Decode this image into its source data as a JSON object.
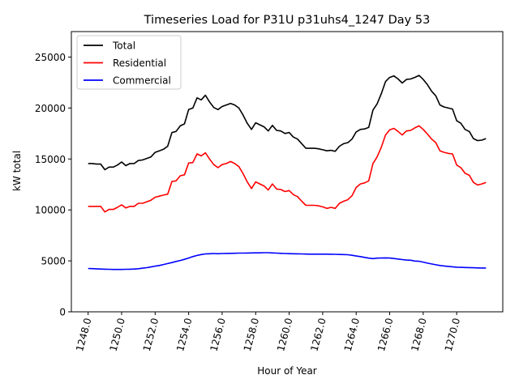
{
  "chart_data": {
    "type": "line",
    "title": "Timeseries Load for P31U p31uhs4_1247  Day 53",
    "xlabel": "Hour of Year",
    "ylabel": "kW total",
    "xlim": [
      1247.0,
      1272.75
    ],
    "ylim": [
      0,
      27500
    ],
    "x_ticks": [
      1248,
      1250,
      1252,
      1254,
      1256,
      1258,
      1260,
      1262,
      1264,
      1266,
      1268,
      1270
    ],
    "x_tick_labels": [
      "1248.0",
      "1250.0",
      "1252.0",
      "1254.0",
      "1256.0",
      "1258.0",
      "1260.0",
      "1262.0",
      "1264.0",
      "1266.0",
      "1268.0",
      "1270.0"
    ],
    "y_ticks": [
      0,
      5000,
      10000,
      15000,
      20000,
      25000
    ],
    "y_tick_labels": [
      "0",
      "5000",
      "10000",
      "15000",
      "20000",
      "25000"
    ],
    "legend_position": "top-left",
    "grid": false,
    "x": [
      1248.0,
      1248.25,
      1248.5,
      1248.75,
      1249.0,
      1249.25,
      1249.5,
      1249.75,
      1250.0,
      1250.25,
      1250.5,
      1250.75,
      1251.0,
      1251.25,
      1251.5,
      1251.75,
      1252.0,
      1252.25,
      1252.5,
      1252.75,
      1253.0,
      1253.25,
      1253.5,
      1253.75,
      1254.0,
      1254.25,
      1254.5,
      1254.75,
      1255.0,
      1255.25,
      1255.5,
      1255.75,
      1256.0,
      1256.25,
      1256.5,
      1256.75,
      1257.0,
      1257.25,
      1257.5,
      1257.75,
      1258.0,
      1258.25,
      1258.5,
      1258.75,
      1259.0,
      1259.25,
      1259.5,
      1259.75,
      1260.0,
      1260.25,
      1260.5,
      1260.75,
      1261.0,
      1261.25,
      1261.5,
      1261.75,
      1262.0,
      1262.25,
      1262.5,
      1262.75,
      1263.0,
      1263.25,
      1263.5,
      1263.75,
      1264.0,
      1264.25,
      1264.5,
      1264.75,
      1265.0,
      1265.25,
      1265.5,
      1265.75,
      1266.0,
      1266.25,
      1266.5,
      1266.75,
      1267.0,
      1267.25,
      1267.5,
      1267.75,
      1268.0,
      1268.25,
      1268.5,
      1268.75,
      1269.0,
      1269.25,
      1269.5,
      1269.75,
      1270.0,
      1270.25,
      1270.5,
      1270.75,
      1271.0,
      1271.25,
      1271.5,
      1271.75
    ],
    "series": [
      {
        "name": "Total",
        "color": "#000000",
        "values": [
          14550,
          14550,
          14500,
          14500,
          13950,
          14200,
          14200,
          14400,
          14700,
          14350,
          14550,
          14550,
          14850,
          14900,
          15050,
          15200,
          15650,
          15800,
          15950,
          16250,
          17600,
          17700,
          18250,
          18450,
          19850,
          20000,
          21000,
          20800,
          21250,
          20600,
          20050,
          19850,
          20150,
          20300,
          20450,
          20300,
          20000,
          19300,
          18500,
          17900,
          18550,
          18350,
          18150,
          17750,
          18300,
          17800,
          17750,
          17500,
          17600,
          17150,
          16950,
          16500,
          16050,
          16050,
          16050,
          16000,
          15900,
          15800,
          15850,
          15750,
          16250,
          16500,
          16600,
          16950,
          17650,
          17900,
          17950,
          18100,
          19800,
          20400,
          21400,
          22600,
          23000,
          23150,
          22850,
          22450,
          22800,
          22850,
          23000,
          23200,
          22800,
          22300,
          21650,
          21200,
          20300,
          20100,
          20000,
          19900,
          18750,
          18500,
          17900,
          17700,
          17000,
          16800,
          16850,
          17000
        ]
      },
      {
        "name": "Residential",
        "color": "#ff0000",
        "values": [
          10350,
          10350,
          10350,
          10350,
          9800,
          10050,
          10050,
          10250,
          10500,
          10200,
          10350,
          10350,
          10650,
          10650,
          10800,
          10950,
          11250,
          11350,
          11450,
          11550,
          12800,
          12850,
          13350,
          13450,
          14600,
          14650,
          15500,
          15300,
          15600,
          15000,
          14450,
          14150,
          14450,
          14550,
          14750,
          14550,
          14250,
          13550,
          12750,
          12100,
          12750,
          12550,
          12350,
          11950,
          12550,
          12050,
          12000,
          11800,
          11900,
          11500,
          11300,
          10850,
          10450,
          10450,
          10450,
          10400,
          10300,
          10150,
          10250,
          10150,
          10650,
          10850,
          11000,
          11400,
          12200,
          12550,
          12650,
          12850,
          14550,
          15200,
          16150,
          17350,
          17850,
          18000,
          17700,
          17350,
          17750,
          17800,
          18050,
          18250,
          17900,
          17450,
          16950,
          16600,
          15800,
          15650,
          15550,
          15500,
          14400,
          14150,
          13600,
          13400,
          12700,
          12450,
          12550,
          12700
        ]
      },
      {
        "name": "Commercial",
        "color": "#0000ff",
        "values": [
          4250,
          4240,
          4220,
          4200,
          4180,
          4170,
          4160,
          4160,
          4160,
          4170,
          4180,
          4200,
          4230,
          4280,
          4330,
          4400,
          4480,
          4550,
          4640,
          4740,
          4830,
          4940,
          5040,
          5150,
          5280,
          5420,
          5530,
          5620,
          5680,
          5700,
          5720,
          5700,
          5720,
          5730,
          5740,
          5750,
          5760,
          5760,
          5770,
          5780,
          5790,
          5790,
          5800,
          5800,
          5780,
          5760,
          5740,
          5720,
          5710,
          5700,
          5690,
          5680,
          5670,
          5660,
          5660,
          5660,
          5660,
          5660,
          5650,
          5640,
          5630,
          5620,
          5600,
          5550,
          5480,
          5420,
          5340,
          5270,
          5220,
          5270,
          5280,
          5290,
          5280,
          5230,
          5180,
          5130,
          5080,
          5060,
          4980,
          4960,
          4880,
          4780,
          4700,
          4620,
          4550,
          4500,
          4460,
          4420,
          4380,
          4360,
          4350,
          4340,
          4320,
          4310,
          4300,
          4300
        ]
      }
    ]
  }
}
